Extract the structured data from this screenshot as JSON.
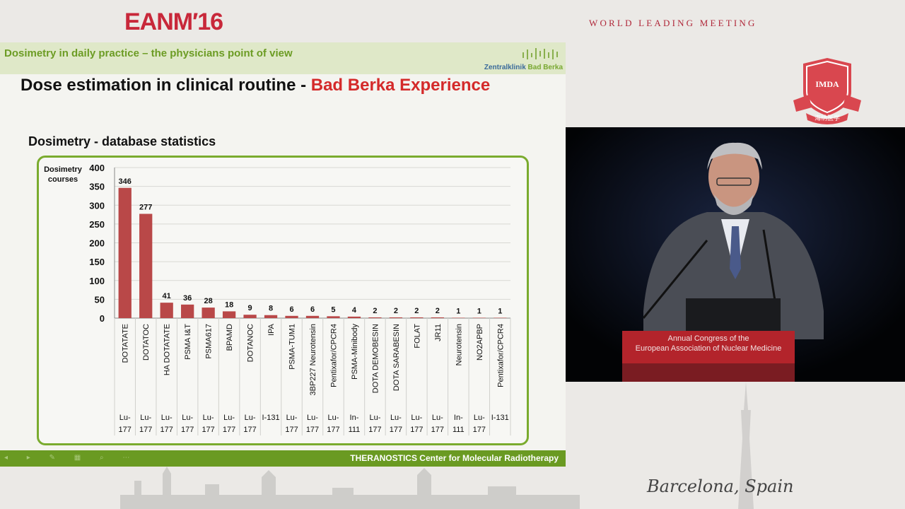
{
  "event": {
    "brand": "EANM′16",
    "tagline": "WORLD LEADING MEETING",
    "city": "Barcelona, Spain",
    "logo_text": "IMDA",
    "logo_subtext": "海纳医学"
  },
  "slide": {
    "header_title": "Dosimetry in daily practice – the physicians point of view",
    "clinic_part1": "Zentralklinik",
    "clinic_part2": "Bad Berka",
    "title_main": "Dose estimation in clinical routine - ",
    "title_highlight": "Bad Berka Experience",
    "subtitle": "Dosimetry - database statistics",
    "footer": "THERANOSTICS Center for Molecular Radiotherapy"
  },
  "video": {
    "podium_line1": "Annual Congress of the",
    "podium_line2": "European Association of Nuclear Medicine"
  },
  "colors": {
    "bar": "#b94848",
    "accent_green": "#7aab2e",
    "brand_red": "#c8283a"
  },
  "chart_data": {
    "type": "bar",
    "ylabel": "Dosimetry courses",
    "ylim": [
      0,
      400
    ],
    "yticks": [
      0,
      50,
      100,
      150,
      200,
      250,
      300,
      350,
      400
    ],
    "categories": [
      "DOTATATE",
      "DOTATOC",
      "HA DOTATATE",
      "PSMA I&T",
      "PSMA617",
      "BPAMD",
      "DOTANOC",
      "IPA",
      "PSMA-TUM1",
      "3BP227 Neurotensin",
      "Pentixafor/CPCR4",
      "PSMA-Minibody",
      "DOTA DEMOBESIN",
      "DOTA SARABESIN",
      "FOLAT",
      "JR11",
      "Neurotensin",
      "NO2APBP",
      "Pentixafor/CPCR4"
    ],
    "isotopes": [
      [
        "Lu-",
        "177"
      ],
      [
        "Lu-",
        "177"
      ],
      [
        "Lu-",
        "177"
      ],
      [
        "Lu-",
        "177"
      ],
      [
        "Lu-",
        "177"
      ],
      [
        "Lu-",
        "177"
      ],
      [
        "Lu-",
        "177"
      ],
      [
        "I-131",
        ""
      ],
      [
        "Lu-",
        "177"
      ],
      [
        "Lu-",
        "177"
      ],
      [
        "Lu-",
        "177"
      ],
      [
        "In-",
        "111"
      ],
      [
        "Lu-",
        "177"
      ],
      [
        "Lu-",
        "177"
      ],
      [
        "Lu-",
        "177"
      ],
      [
        "Lu-",
        "177"
      ],
      [
        "In-",
        "111"
      ],
      [
        "Lu-",
        "177"
      ],
      [
        "I-131",
        ""
      ]
    ],
    "values": [
      346,
      277,
      41,
      36,
      28,
      18,
      9,
      8,
      6,
      6,
      5,
      4,
      2,
      2,
      2,
      2,
      1,
      1,
      1
    ]
  }
}
